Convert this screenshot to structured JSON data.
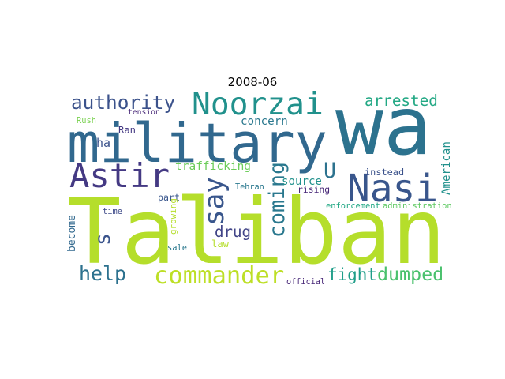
{
  "chart_data": {
    "type": "wordcloud",
    "title": "2008-06",
    "words": [
      {
        "text": "Taliban",
        "color": "#b5de2b"
      },
      {
        "text": "wa",
        "color": "#2c728e"
      },
      {
        "text": "military",
        "color": "#31688e"
      },
      {
        "text": "Nasi",
        "color": "#39568c"
      },
      {
        "text": "Astir",
        "color": "#443983"
      },
      {
        "text": "Noorzai",
        "color": "#21918c"
      },
      {
        "text": "commander",
        "color": "#bddf26"
      },
      {
        "text": "authority",
        "color": "#3b528b"
      },
      {
        "text": "say",
        "color": "#39568c"
      },
      {
        "text": "coming",
        "color": "#2a788e"
      },
      {
        "text": "fight",
        "color": "#1f9e89"
      },
      {
        "text": "dumped",
        "color": "#4ac16d"
      },
      {
        "text": "help",
        "color": "#2c718e"
      },
      {
        "text": "arrested",
        "color": "#22a884"
      },
      {
        "text": "U",
        "color": "#2c728e"
      },
      {
        "text": "s",
        "color": "#3a548c"
      },
      {
        "text": "drug",
        "color": "#414487"
      },
      {
        "text": "trafficking",
        "color": "#6ccd5a"
      },
      {
        "text": "concern",
        "color": "#2a788e"
      },
      {
        "text": "instead",
        "color": "#3b528b"
      },
      {
        "text": "source",
        "color": "#21918c"
      },
      {
        "text": "rising",
        "color": "#482878"
      },
      {
        "text": "Tehran",
        "color": "#2a788e"
      },
      {
        "text": "American",
        "color": "#21918c"
      },
      {
        "text": "enforcement",
        "color": "#22a884"
      },
      {
        "text": "administration",
        "color": "#5ec962"
      },
      {
        "text": "tension",
        "color": "#482878"
      },
      {
        "text": "Rush",
        "color": "#7ad151"
      },
      {
        "text": "Ran",
        "color": "#443983"
      },
      {
        "text": "ha",
        "color": "#3b528b"
      },
      {
        "text": "part",
        "color": "#39568c"
      },
      {
        "text": "growing",
        "color": "#b5de2b"
      },
      {
        "text": "time",
        "color": "#3e4a89"
      },
      {
        "text": "become",
        "color": "#31688e"
      },
      {
        "text": "sale",
        "color": "#2a788e"
      },
      {
        "text": "law",
        "color": "#b5de2b"
      },
      {
        "text": "official",
        "color": "#482878"
      }
    ]
  }
}
